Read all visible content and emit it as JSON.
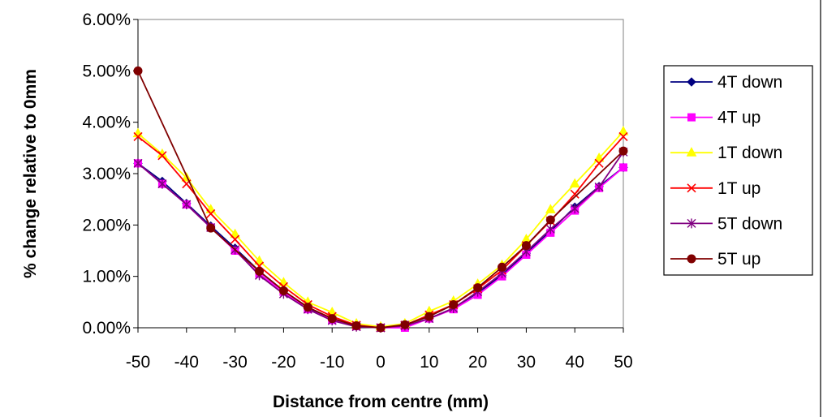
{
  "chart_data": {
    "type": "line",
    "xlabel": "Distance from centre (mm)",
    "ylabel": "% change relative to 0mm",
    "x_ticks": [
      "-50",
      "-40",
      "-30",
      "-20",
      "-10",
      "0",
      "10",
      "20",
      "30",
      "40",
      "50"
    ],
    "y_ticks": [
      "0.00%",
      "1.00%",
      "2.00%",
      "3.00%",
      "4.00%",
      "5.00%",
      "6.00%"
    ],
    "xlim": [
      -50,
      50
    ],
    "ylim": [
      0,
      6
    ],
    "grid": false,
    "legend_position": "right",
    "x": [
      -50,
      -45,
      -40,
      -35,
      -30,
      -25,
      -20,
      -15,
      -10,
      -5,
      0,
      5,
      10,
      15,
      20,
      25,
      30,
      35,
      40,
      45,
      50
    ],
    "series": [
      {
        "name": "4T down",
        "color": "#000080",
        "marker": "diamond",
        "values": [
          3.2,
          2.85,
          2.42,
          1.98,
          1.55,
          1.1,
          0.72,
          0.38,
          0.18,
          0.04,
          0.0,
          0.02,
          0.18,
          0.38,
          0.68,
          1.02,
          1.45,
          1.88,
          2.35,
          2.75,
          3.12
        ]
      },
      {
        "name": "4T up",
        "color": "#ff00ff",
        "marker": "square",
        "values": [
          3.2,
          2.8,
          2.4,
          1.95,
          1.5,
          1.05,
          0.7,
          0.36,
          0.15,
          0.03,
          0.0,
          0.0,
          0.18,
          0.36,
          0.64,
          1.0,
          1.42,
          1.85,
          2.28,
          2.72,
          3.12
        ]
      },
      {
        "name": "1T down",
        "color": "#ffff00",
        "marker": "triangle",
        "values": [
          3.78,
          3.38,
          2.92,
          2.3,
          1.82,
          1.3,
          0.88,
          0.5,
          0.3,
          0.08,
          0.02,
          0.08,
          0.32,
          0.52,
          0.85,
          1.22,
          1.72,
          2.3,
          2.8,
          3.3,
          3.82
        ]
      },
      {
        "name": "1T up",
        "color": "#ff0000",
        "marker": "x",
        "values": [
          3.72,
          3.35,
          2.8,
          2.22,
          1.72,
          1.2,
          0.8,
          0.45,
          0.22,
          0.05,
          0.0,
          0.05,
          0.25,
          0.45,
          0.76,
          1.12,
          1.6,
          2.08,
          2.6,
          3.2,
          3.72
        ]
      },
      {
        "name": "5T down",
        "color": "#800080",
        "marker": "star",
        "values": [
          3.2,
          2.8,
          2.4,
          1.95,
          1.52,
          1.02,
          0.66,
          0.36,
          0.14,
          0.02,
          0.0,
          0.04,
          0.18,
          0.38,
          0.7,
          1.06,
          1.48,
          1.92,
          2.32,
          2.74,
          3.42
        ]
      },
      {
        "name": "5T up",
        "color": "#800000",
        "marker": "circle",
        "values": [
          5.0,
          null,
          null,
          1.94,
          null,
          1.1,
          0.72,
          0.4,
          0.18,
          0.04,
          0.0,
          0.06,
          0.22,
          0.45,
          0.78,
          1.18,
          1.6,
          2.1,
          null,
          null,
          3.44
        ]
      }
    ]
  }
}
